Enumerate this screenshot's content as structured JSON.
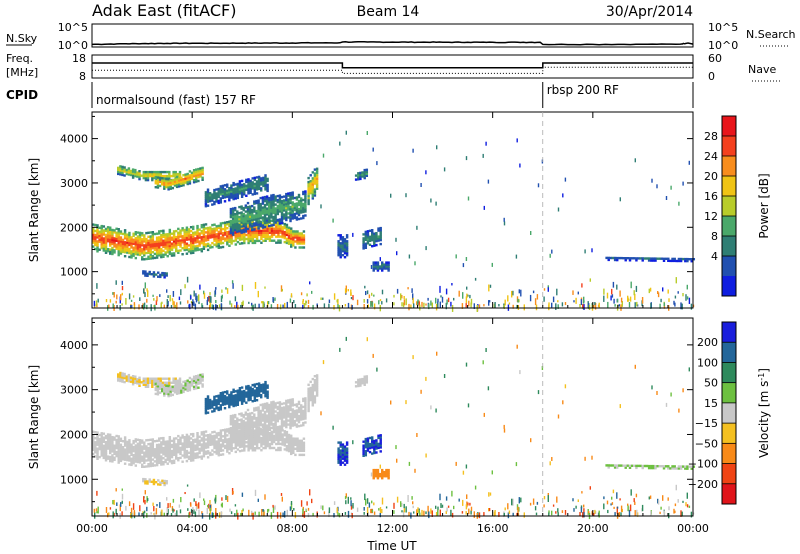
{
  "header": {
    "station": "Adak East (fitACF)",
    "beam": "Beam 14",
    "date": "30/Apr/2014"
  },
  "params": {
    "nsky": {
      "label": "N.Sky",
      "ticks": [
        "10^5",
        "10^0"
      ]
    },
    "nsearch": {
      "label": "N.Search",
      "ticks": [
        "10^5",
        "10^0"
      ]
    },
    "freq": {
      "label_lines": [
        "Freq.",
        "[MHz]"
      ],
      "ticks": [
        "18",
        "8"
      ]
    },
    "nave": {
      "label": "Nave",
      "ticks": [
        "60",
        "0"
      ]
    },
    "cpid": {
      "label": "CPID",
      "segments": [
        {
          "name": "normalsound (fast) 157 RF",
          "start": "00:00",
          "end": "18:00"
        },
        {
          "name": "rbsp 200 RF",
          "start": "18:00",
          "end": "24:00"
        }
      ]
    }
  },
  "x_axis": {
    "label": "Time UT",
    "ticks": [
      "00:00",
      "04:00",
      "08:00",
      "12:00",
      "16:00",
      "20:00",
      "00:00"
    ]
  },
  "panels": [
    {
      "ylabel": "Slant Range [km]",
      "yticks": [
        "4000",
        "3000",
        "2000",
        "1000"
      ],
      "colorbar": {
        "label": "Power [dB]",
        "ticks": [
          "28",
          "24",
          "20",
          "16",
          "12",
          "8",
          "4"
        ],
        "colors": [
          "#e8151b",
          "#f4401e",
          "#f88d1d",
          "#f0c415",
          "#b8cc2a",
          "#4aa86a",
          "#2f7e74",
          "#2150b0",
          "#0f1ee0"
        ]
      }
    },
    {
      "ylabel": "Slant Range [km]",
      "yticks": [
        "4000",
        "3000",
        "2000",
        "1000"
      ],
      "colorbar": {
        "label_main": "Velocity [m s",
        "label_sup": "-1",
        "label_end": "]",
        "ticks": [
          "200",
          "100",
          "50",
          "15",
          "−15",
          "−50",
          "−100",
          "−200"
        ],
        "colors": [
          "#1a1edc",
          "#23669a",
          "#2e8a5c",
          "#6dc040",
          "#c8c8c8",
          "#f4c020",
          "#f88a18",
          "#f04414",
          "#e0141a"
        ]
      }
    }
  ],
  "chart_data": [
    {
      "type": "line",
      "name": "N.Sky",
      "y_scale": "log",
      "x": [
        0,
        1,
        2,
        3,
        4,
        5,
        6,
        7,
        8,
        9,
        9.9,
        10.0,
        11,
        12,
        13,
        14,
        15,
        16,
        17,
        17.9,
        18.0,
        20,
        22,
        23.5,
        23.8,
        24
      ],
      "y": [
        1.5,
        2.0,
        2.5,
        2.8,
        3.0,
        3.0,
        3.2,
        3.4,
        3.6,
        3.8,
        3.9,
        6.5,
        6.2,
        6.0,
        5.8,
        5.6,
        5.5,
        5.4,
        5.3,
        5.3,
        1.5,
        1.5,
        1.6,
        1.8,
        3.5,
        1.8
      ]
    },
    {
      "type": "line",
      "name": "Freq. [MHz]",
      "ylim": [
        8,
        18
      ],
      "x": [
        0,
        10,
        10,
        18,
        18,
        24
      ],
      "y": [
        14.5,
        14.5,
        12.5,
        12.5,
        14.5,
        14.5
      ]
    },
    {
      "type": "line",
      "name": "Nave",
      "ylim": [
        0,
        60
      ],
      "x": [
        0,
        10,
        10,
        18,
        18,
        24
      ],
      "y": [
        20,
        20,
        12,
        12,
        28,
        28
      ]
    },
    {
      "type": "heatmap",
      "name": "Power [dB]",
      "xlabel": "Time UT",
      "ylabel": "Slant Range [km]",
      "xlim": [
        0,
        24
      ],
      "ylim": [
        180,
        4600
      ],
      "zlim": [
        0,
        30
      ],
      "bands": [
        {
          "t": [
            0.0,
            2.0,
            4.0,
            6.0,
            7.5,
            8.0,
            8.5
          ],
          "center": [
            1750,
            1550,
            1700,
            1900,
            1880,
            1720,
            1700
          ],
          "half_width": [
            300,
            300,
            300,
            280,
            250,
            200,
            180
          ],
          "peak_db": 26,
          "peak_vel": 0
        },
        {
          "t": [
            1.0,
            2.0,
            3.5
          ],
          "center": [
            3280,
            3150,
            3150
          ],
          "half_width": [
            100,
            110,
            110
          ],
          "peak_db": 18,
          "peak_vel": -10
        },
        {
          "t": [
            2.5,
            3.0,
            4.4
          ],
          "center": [
            3000,
            2950,
            3200
          ],
          "half_width": [
            120,
            120,
            150
          ],
          "peak_db": 22,
          "peak_vel": 5
        },
        {
          "t": [
            5.5,
            7.0,
            8.5
          ],
          "center": [
            2100,
            2350,
            2500
          ],
          "half_width": [
            300,
            350,
            300
          ],
          "peak_db": 12,
          "peak_vel": 0
        },
        {
          "t": [
            4.5,
            6.0,
            7.0
          ],
          "center": [
            2650,
            2850,
            3000
          ],
          "half_width": [
            200,
            180,
            200
          ],
          "peak_db": 10,
          "peak_vel": 150
        },
        {
          "t": [
            8.6,
            9.0
          ],
          "center": [
            2800,
            3100
          ],
          "half_width": [
            300,
            300
          ],
          "peak_db": 20,
          "peak_vel": 0
        },
        {
          "t": [
            10.8,
            11.5
          ],
          "center": [
            1700,
            1800
          ],
          "half_width": [
            200,
            200
          ],
          "peak_db": 10,
          "peak_vel": 200
        },
        {
          "t": [
            9.8,
            10.2
          ],
          "center": [
            1550,
            1550
          ],
          "half_width": [
            250,
            250
          ],
          "peak_db": 8,
          "peak_vel": 200
        },
        {
          "t": [
            10.5,
            11.0
          ],
          "center": [
            3150,
            3200
          ],
          "half_width": [
            100,
            100
          ],
          "peak_db": 10,
          "peak_vel": 0
        },
        {
          "t": [
            2.0,
            3.0
          ],
          "center": [
            950,
            900
          ],
          "half_width": [
            60,
            60
          ],
          "peak_db": 8,
          "peak_vel": -15
        },
        {
          "t": [
            20.5,
            24.0
          ],
          "center": [
            1280,
            1250
          ],
          "half_width": [
            40,
            40
          ],
          "peak_db": 6,
          "peak_vel": 20
        },
        {
          "t": [
            11.2,
            11.8
          ],
          "center": [
            1100,
            1100
          ],
          "half_width": [
            100,
            100
          ],
          "peak_db": 8,
          "peak_vel": -80
        }
      ]
    },
    {
      "type": "heatmap",
      "name": "Velocity [m s-1]",
      "xlabel": "Time UT",
      "ylabel": "Slant Range [km]",
      "xlim": [
        0,
        24
      ],
      "ylim": [
        180,
        4600
      ],
      "zlim": [
        -200,
        200
      ]
    }
  ]
}
